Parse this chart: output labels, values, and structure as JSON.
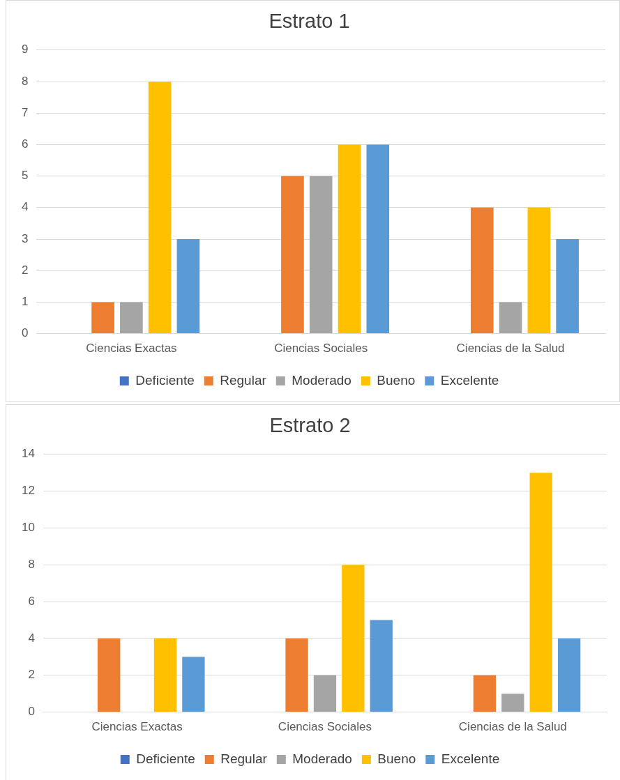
{
  "chart_data": [
    {
      "type": "bar",
      "title": "Estrato 1",
      "categories": [
        "Ciencias Exactas",
        "Ciencias Sociales",
        "Ciencias de la Salud"
      ],
      "series": [
        {
          "name": "Deficiente",
          "color": "#4472c4",
          "values": [
            0,
            0,
            0
          ]
        },
        {
          "name": "Regular",
          "color": "#ed7d31",
          "values": [
            1,
            5,
            4
          ]
        },
        {
          "name": "Moderado",
          "color": "#a5a5a5",
          "values": [
            1,
            5,
            1
          ]
        },
        {
          "name": "Bueno",
          "color": "#ffc000",
          "values": [
            8,
            6,
            4
          ]
        },
        {
          "name": "Excelente",
          "color": "#5b9bd5",
          "values": [
            3,
            6,
            3
          ]
        }
      ],
      "ylim": [
        0,
        9
      ],
      "yticks": [
        0,
        1,
        2,
        3,
        4,
        5,
        6,
        7,
        8,
        9
      ],
      "grid": "y",
      "legend": "bottom"
    },
    {
      "type": "bar",
      "title": "Estrato 2",
      "categories": [
        "Ciencias Exactas",
        "Ciencias Sociales",
        "Ciencias de la Salud"
      ],
      "series": [
        {
          "name": "Deficiente",
          "color": "#4472c4",
          "values": [
            0,
            0,
            0
          ]
        },
        {
          "name": "Regular",
          "color": "#ed7d31",
          "values": [
            4,
            4,
            2
          ]
        },
        {
          "name": "Moderado",
          "color": "#a5a5a5",
          "values": [
            0,
            2,
            1
          ]
        },
        {
          "name": "Bueno",
          "color": "#ffc000",
          "values": [
            4,
            8,
            13
          ]
        },
        {
          "name": "Excelente",
          "color": "#5b9bd5",
          "values": [
            3,
            5,
            4
          ]
        }
      ],
      "ylim": [
        0,
        14
      ],
      "yticks": [
        0,
        2,
        4,
        6,
        8,
        10,
        12,
        14
      ],
      "grid": "y",
      "legend": "bottom"
    }
  ]
}
